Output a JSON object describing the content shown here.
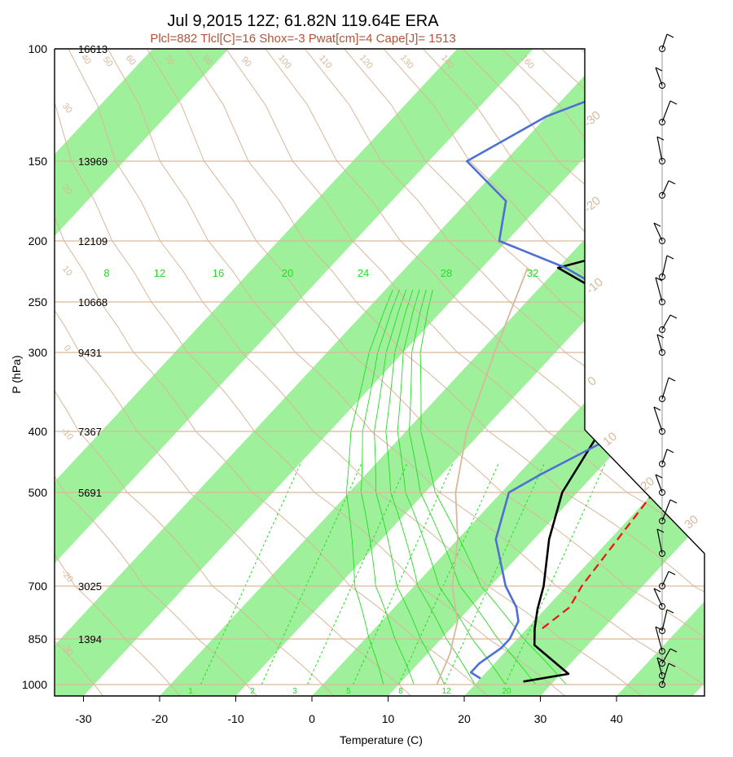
{
  "chart_data": {
    "type": "skew-t",
    "title": "Jul 9,2015 12Z; 61.82N 119.64E ERA",
    "subtitle": "Plcl=882 Tlcl[C]=16 Shox=-3 Pwat[cm]=4 Cape[J]= 1513",
    "xlabel": "Temperature (C)",
    "ylabel": "P (hPa)",
    "xlim": [
      -34,
      52
    ],
    "ylim": [
      1050,
      100
    ],
    "x_ticks": [
      "-30",
      "-20",
      "-10",
      "0",
      "10",
      "20",
      "30",
      "40"
    ],
    "pressure_levels": [
      "100",
      "150",
      "200",
      "250",
      "300",
      "400",
      "500",
      "700",
      "850",
      "1000"
    ],
    "heights": [
      "16613",
      "13969",
      "12109",
      "10668",
      "9431",
      "7367",
      "5691",
      "3025",
      "1394"
    ],
    "dry_adiabat_labels": [
      "-30",
      "-20",
      "-10",
      "0",
      "10",
      "20",
      "30",
      "40",
      "50",
      "60",
      "70",
      "80",
      "90",
      "100",
      "110",
      "120",
      "130",
      "140",
      "160"
    ],
    "moist_adiabat_labels": [
      "8",
      "12",
      "16",
      "20",
      "24",
      "28",
      "32"
    ],
    "mixing_ratio_labels": [
      "1",
      "2",
      "3",
      "5",
      "8",
      "12",
      "20"
    ],
    "isotherm_labels": [
      "-30",
      "-20",
      "-10",
      "0",
      "10",
      "20",
      "30"
    ],
    "colors": {
      "temperature": "#000000",
      "dewpoint": "#4e6fd6",
      "parcel": "#ee1111",
      "band": "#9ef09a",
      "dry_adiabat": "#d9b79a",
      "moist_adiabat": "#22dd22",
      "mixing_ratio": "#22dd22",
      "title": "#111111",
      "subtitle": "#b0553a"
    },
    "series": [
      {
        "name": "",
        "points": [
          [
            26,
            990
          ],
          [
            31,
            965
          ],
          [
            23,
            870
          ],
          [
            21,
            820
          ],
          [
            19,
            765
          ],
          [
            17,
            700
          ],
          [
            12,
            600
          ],
          [
            8,
            500
          ],
          [
            6,
            420
          ],
          [
            5.5,
            400
          ],
          [
            4,
            370
          ],
          [
            2,
            330
          ],
          [
            -3,
            290
          ],
          [
            -8,
            250
          ],
          [
            -20,
            222
          ],
          [
            -10,
            200
          ],
          [
            -5,
            180
          ],
          [
            2,
            160
          ],
          [
            12,
            150
          ],
          [
            18,
            130
          ],
          [
            28,
            115
          ],
          [
            38,
            100
          ]
        ]
      },
      {
        "name": "",
        "points": [
          [
            20,
            980
          ],
          [
            18,
            960
          ],
          [
            18,
            930
          ],
          [
            19,
            880
          ],
          [
            19,
            850
          ],
          [
            18,
            800
          ],
          [
            16,
            760
          ],
          [
            12,
            700
          ],
          [
            5,
            600
          ],
          [
            1,
            500
          ],
          [
            3,
            470
          ],
          [
            7,
            420
          ],
          [
            9,
            400
          ],
          [
            8,
            370
          ],
          [
            4,
            330
          ],
          [
            -1,
            290
          ],
          [
            -7,
            250
          ],
          [
            -19,
            222
          ],
          [
            -31,
            200
          ],
          [
            -35,
            175
          ],
          [
            -45,
            150
          ],
          [
            -40,
            130
          ],
          [
            -30,
            110
          ],
          [
            -25,
            100
          ]
        ]
      },
      {
        "name": "",
        "points": [
          [
            22,
            820
          ],
          [
            23,
            760
          ],
          [
            22,
            700
          ],
          [
            21,
            600
          ],
          [
            20,
            500
          ],
          [
            18,
            420
          ],
          [
            15,
            360
          ],
          [
            12,
            320
          ],
          [
            8,
            290
          ],
          [
            3,
            260
          ],
          [
            -3,
            235
          ]
        ]
      }
    ],
    "parcel_temperature_profile": [
      [
        15,
        1000
      ],
      [
        13,
        900
      ],
      [
        10,
        800
      ],
      [
        5,
        700
      ],
      [
        0,
        600
      ],
      [
        -6,
        500
      ],
      [
        -12,
        400
      ],
      [
        -18,
        300
      ],
      [
        -24,
        222
      ]
    ],
    "wind_column": true
  }
}
